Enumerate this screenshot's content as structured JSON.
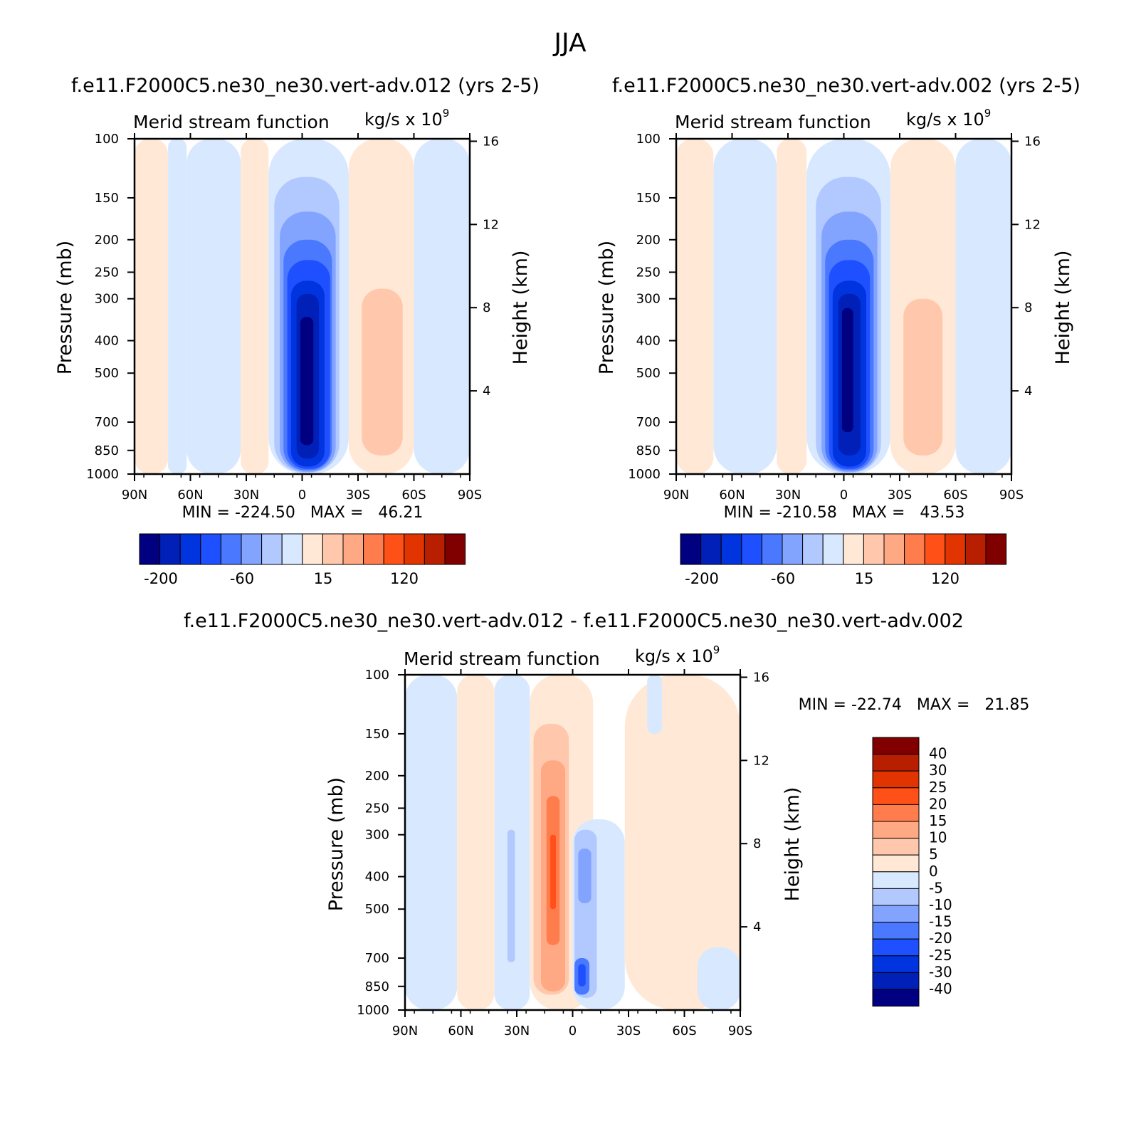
{
  "figure_title": "JJA",
  "colors": {
    "blue_scale": [
      "#000080",
      "#0020b8",
      "#0034df",
      "#1e50ff",
      "#4a78ff",
      "#82a4ff",
      "#b2c9ff",
      "#d8e8ff"
    ],
    "red_scale": [
      "#ffe8d6",
      "#ffc8ac",
      "#ffa884",
      "#ff7c4c",
      "#ff5018",
      "#e23400",
      "#b81e00",
      "#800000"
    ]
  },
  "panels": [
    {
      "id": "case012",
      "case_title": "f.e11.F2000C5.ne30_ne30.vert-adv.012 (yrs 2-5)",
      "variable_label": "Merid stream function",
      "units_label": "kg/s x 10",
      "units_exp": "9",
      "ylabel": "Pressure (mb)",
      "y2label": "Height (km)",
      "minmax": "MIN = -224.50   MAX =   46.21",
      "colorbar_labels": [
        "-200",
        "-60",
        "15",
        "120"
      ]
    },
    {
      "id": "case002",
      "case_title": "f.e11.F2000C5.ne30_ne30.vert-adv.002 (yrs 2-5)",
      "variable_label": "Merid stream function",
      "units_label": "kg/s x 10",
      "units_exp": "9",
      "ylabel": "Pressure (mb)",
      "y2label": "Height (km)",
      "minmax": "MIN = -210.58   MAX =   43.53",
      "colorbar_labels": [
        "-200",
        "-60",
        "15",
        "120"
      ]
    },
    {
      "id": "diff",
      "case_title": "f.e11.F2000C5.ne30_ne30.vert-adv.012 - f.e11.F2000C5.ne30_ne30.vert-adv.002",
      "variable_label": "Merid stream function",
      "units_label": "kg/s x 10",
      "units_exp": "9",
      "ylabel": "Pressure (mb)",
      "y2label": "Height (km)",
      "minmax": "MIN = -22.74   MAX =   21.85",
      "colorbar_labels": [
        "40",
        "30",
        "25",
        "20",
        "15",
        "10",
        "5",
        "0",
        "-5",
        "-10",
        "-15",
        "-20",
        "-25",
        "-30",
        "-40"
      ]
    }
  ],
  "chart_data": [
    {
      "type": "heatmap",
      "title": "Merid stream function",
      "subtitle": "f.e11.F2000C5.ne30_ne30.vert-adv.012 (yrs 2-5)",
      "ylabel": "Pressure (mb)",
      "y2label": "Height (km)",
      "x_ticks": [
        "90N",
        "60N",
        "30N",
        "0",
        "30S",
        "60S",
        "90S"
      ],
      "y_ticks": [
        100,
        150,
        200,
        250,
        300,
        400,
        500,
        700,
        850,
        1000
      ],
      "y2_ticks": [
        4,
        8,
        12,
        16
      ],
      "ylim": [
        1000,
        100
      ],
      "min": -224.5,
      "max": 46.21,
      "cells": [
        {
          "lat": [
            90,
            72
          ],
          "p": [
            1000,
            100
          ],
          "v": 5
        },
        {
          "lat": [
            72,
            62
          ],
          "p": [
            1000,
            100
          ],
          "v": -3
        },
        {
          "lat": [
            62,
            33
          ],
          "p": [
            1000,
            100
          ],
          "v": -8
        },
        {
          "lat": [
            33,
            18
          ],
          "p": [
            1000,
            100
          ],
          "v": 5
        },
        {
          "lat": [
            52,
            48
          ],
          "p": [
            750,
            430
          ],
          "v": -12
        },
        {
          "lat": [
            30,
            26
          ],
          "p": [
            900,
            300
          ],
          "v": 12
        },
        {
          "lat": [
            18,
            -25
          ],
          "p": [
            1000,
            100
          ],
          "v": -8
        },
        {
          "lat": [
            15,
            -20
          ],
          "p": [
            990,
            130
          ],
          "v": -25
        },
        {
          "lat": [
            12,
            -18
          ],
          "p": [
            985,
            165
          ],
          "v": -50
        },
        {
          "lat": [
            10,
            -16
          ],
          "p": [
            975,
            200
          ],
          "v": -80
        },
        {
          "lat": [
            8,
            -15
          ],
          "p": [
            965,
            230
          ],
          "v": -110
        },
        {
          "lat": [
            6,
            -12
          ],
          "p": [
            950,
            265
          ],
          "v": -145
        },
        {
          "lat": [
            3,
            -9
          ],
          "p": [
            900,
            290
          ],
          "v": -180
        },
        {
          "lat": [
            1,
            -6
          ],
          "p": [
            820,
            340
          ],
          "v": -210
        },
        {
          "lat": [
            -25,
            -60
          ],
          "p": [
            1000,
            100
          ],
          "v": 5
        },
        {
          "lat": [
            -28,
            -57
          ],
          "p": [
            960,
            210
          ],
          "v": 12
        },
        {
          "lat": [
            -32,
            -54
          ],
          "p": [
            880,
            280
          ],
          "v": 25
        },
        {
          "lat": [
            -60,
            -90
          ],
          "p": [
            1000,
            100
          ],
          "v": -4
        },
        {
          "lat": [
            -68,
            -72
          ],
          "p": [
            700,
            580
          ],
          "v": -12
        }
      ]
    },
    {
      "type": "heatmap",
      "title": "Merid stream function",
      "subtitle": "f.e11.F2000C5.ne30_ne30.vert-adv.002 (yrs 2-5)",
      "ylabel": "Pressure (mb)",
      "y2label": "Height (km)",
      "x_ticks": [
        "90N",
        "60N",
        "30N",
        "0",
        "30S",
        "60S",
        "90S"
      ],
      "y_ticks": [
        100,
        150,
        200,
        250,
        300,
        400,
        500,
        700,
        850,
        1000
      ],
      "y2_ticks": [
        4,
        8,
        12,
        16
      ],
      "ylim": [
        1000,
        100
      ],
      "min": -210.58,
      "max": 43.53,
      "cells": [
        {
          "lat": [
            90,
            70
          ],
          "p": [
            1000,
            100
          ],
          "v": 5
        },
        {
          "lat": [
            70,
            36
          ],
          "p": [
            1000,
            100
          ],
          "v": -8
        },
        {
          "lat": [
            52,
            47
          ],
          "p": [
            800,
            320
          ],
          "v": -12
        },
        {
          "lat": [
            36,
            20
          ],
          "p": [
            1000,
            100
          ],
          "v": 5
        },
        {
          "lat": [
            32,
            28
          ],
          "p": [
            900,
            300
          ],
          "v": 12
        },
        {
          "lat": [
            20,
            -25
          ],
          "p": [
            1000,
            100
          ],
          "v": -8
        },
        {
          "lat": [
            15,
            -20
          ],
          "p": [
            990,
            130
          ],
          "v": -25
        },
        {
          "lat": [
            12,
            -18
          ],
          "p": [
            985,
            165
          ],
          "v": -50
        },
        {
          "lat": [
            10,
            -16
          ],
          "p": [
            975,
            200
          ],
          "v": -80
        },
        {
          "lat": [
            8,
            -14
          ],
          "p": [
            965,
            230
          ],
          "v": -110
        },
        {
          "lat": [
            6,
            -12
          ],
          "p": [
            950,
            265
          ],
          "v": -145
        },
        {
          "lat": [
            3,
            -9
          ],
          "p": [
            880,
            290
          ],
          "v": -180
        },
        {
          "lat": [
            1,
            -5
          ],
          "p": [
            750,
            320
          ],
          "v": -205
        },
        {
          "lat": [
            -25,
            -60
          ],
          "p": [
            1000,
            100
          ],
          "v": 5
        },
        {
          "lat": [
            -28,
            -56
          ],
          "p": [
            960,
            220
          ],
          "v": 12
        },
        {
          "lat": [
            -32,
            -53
          ],
          "p": [
            880,
            300
          ],
          "v": 25
        },
        {
          "lat": [
            -60,
            -90
          ],
          "p": [
            1000,
            100
          ],
          "v": -4
        },
        {
          "lat": [
            -67,
            -71
          ],
          "p": [
            850,
            540
          ],
          "v": -12
        }
      ]
    },
    {
      "type": "heatmap",
      "title": "Merid stream function",
      "subtitle": "f.e11.F2000C5.ne30_ne30.vert-adv.012 - f.e11.F2000C5.ne30_ne30.vert-adv.002",
      "ylabel": "Pressure (mb)",
      "y2label": "Height (km)",
      "x_ticks": [
        "90N",
        "60N",
        "30N",
        "0",
        "30S",
        "60S",
        "90S"
      ],
      "y_ticks": [
        100,
        150,
        200,
        250,
        300,
        400,
        500,
        700,
        850,
        1000
      ],
      "y2_ticks": [
        4,
        8,
        12,
        16
      ],
      "ylim": [
        1000,
        100
      ],
      "min": -22.74,
      "max": 21.85,
      "cells": [
        {
          "lat": [
            90,
            62
          ],
          "p": [
            1000,
            100
          ],
          "v": -2
        },
        {
          "lat": [
            62,
            42
          ],
          "p": [
            1000,
            100
          ],
          "v": 2
        },
        {
          "lat": [
            42,
            23
          ],
          "p": [
            1000,
            100
          ],
          "v": -2
        },
        {
          "lat": [
            35,
            31
          ],
          "p": [
            720,
            290
          ],
          "v": -7
        },
        {
          "lat": [
            23,
            -11
          ],
          "p": [
            1000,
            100
          ],
          "v": 2
        },
        {
          "lat": [
            21,
            2
          ],
          "p": [
            900,
            140
          ],
          "v": 7
        },
        {
          "lat": [
            17,
            4
          ],
          "p": [
            880,
            180
          ],
          "v": 12
        },
        {
          "lat": [
            14,
            7
          ],
          "p": [
            640,
            230
          ],
          "v": 17
        },
        {
          "lat": [
            12,
            9
          ],
          "p": [
            500,
            300
          ],
          "v": 22
        },
        {
          "lat": [
            0,
            -28
          ],
          "p": [
            1000,
            270
          ],
          "v": -2
        },
        {
          "lat": [
            -1,
            -13
          ],
          "p": [
            920,
            290
          ],
          "v": -7
        },
        {
          "lat": [
            -3,
            -10
          ],
          "p": [
            480,
            330
          ],
          "v": -12
        },
        {
          "lat": [
            -1,
            -9
          ],
          "p": [
            900,
            700
          ],
          "v": -17
        },
        {
          "lat": [
            -3,
            -7
          ],
          "p": [
            850,
            730
          ],
          "v": -25
        },
        {
          "lat": [
            -28,
            -90
          ],
          "p": [
            1000,
            100
          ],
          "v": 2
        },
        {
          "lat": [
            -40,
            -48
          ],
          "p": [
            150,
            100
          ],
          "v": -2
        },
        {
          "lat": [
            -67,
            -90
          ],
          "p": [
            1000,
            650
          ],
          "v": -2
        }
      ]
    }
  ]
}
